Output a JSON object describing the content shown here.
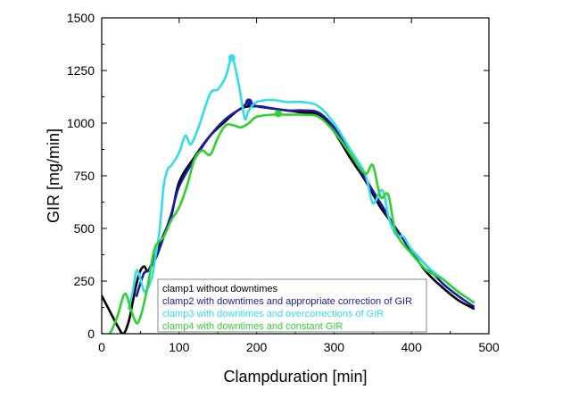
{
  "chart_data": {
    "type": "line",
    "xlabel": "Clampduration [min]",
    "ylabel": "GIR [mg/min]",
    "xlim": [
      0,
      500
    ],
    "ylim": [
      0,
      1500
    ],
    "xticks": [
      0,
      100,
      200,
      300,
      400,
      500
    ],
    "yticks": [
      0,
      250,
      500,
      750,
      1000,
      1250,
      1500
    ],
    "grid": false,
    "legend_position": "bottom-center",
    "series": [
      {
        "name": "clamp1 without downtimes",
        "color": "#000000",
        "x": [
          0,
          10,
          20,
          28,
          35,
          40,
          45,
          50,
          55,
          60,
          70,
          80,
          90,
          100,
          120,
          140,
          160,
          180,
          200,
          220,
          240,
          260,
          280,
          300,
          320,
          340,
          360,
          380,
          400,
          420,
          440,
          460,
          480
        ],
        "y": [
          180,
          110,
          40,
          0,
          60,
          150,
          240,
          300,
          320,
          300,
          380,
          470,
          560,
          720,
          840,
          940,
          1010,
          1070,
          1080,
          1070,
          1060,
          1050,
          1040,
          960,
          840,
          730,
          600,
          500,
          390,
          290,
          220,
          160,
          120
        ]
      },
      {
        "name": "clamp2 with downtimes and appropriate correction of GIR",
        "color": "#1a1aa8",
        "x": [
          45,
          50,
          55,
          60,
          70,
          80,
          90,
          100,
          120,
          140,
          160,
          180,
          190,
          200,
          220,
          240,
          260,
          280,
          300,
          320,
          340,
          360,
          380,
          400,
          420,
          440,
          460,
          480
        ],
        "y": [
          180,
          240,
          290,
          300,
          360,
          460,
          570,
          700,
          830,
          940,
          1020,
          1070,
          1100,
          1080,
          1070,
          1060,
          1060,
          1050,
          980,
          860,
          740,
          620,
          500,
          400,
          320,
          240,
          180,
          130
        ]
      },
      {
        "name": "clamp3 with downtimes and overcorrections of GIR",
        "color": "#33dde6",
        "x": [
          35,
          40,
          45,
          50,
          55,
          60,
          65,
          70,
          75,
          80,
          85,
          90,
          100,
          108,
          115,
          125,
          140,
          150,
          160,
          168,
          175,
          180,
          185,
          190,
          200,
          220,
          240,
          260,
          280,
          300,
          320,
          340,
          350,
          360,
          365,
          370,
          380,
          390,
          400,
          420,
          440,
          460,
          480
        ],
        "y": [
          120,
          200,
          300,
          260,
          200,
          220,
          270,
          380,
          500,
          700,
          780,
          800,
          860,
          940,
          900,
          980,
          1140,
          1160,
          1220,
          1310,
          1220,
          1120,
          1020,
          1060,
          1100,
          1110,
          1100,
          1100,
          1080,
          1000,
          880,
          760,
          620,
          680,
          660,
          560,
          470,
          460,
          400,
          320,
          260,
          200,
          150
        ]
      },
      {
        "name": "clamp4 with downtimes and constant GIR",
        "color": "#2fd22f",
        "x": [
          0,
          10,
          20,
          30,
          38,
          45,
          50,
          55,
          60,
          65,
          70,
          80,
          90,
          100,
          110,
          120,
          130,
          140,
          150,
          160,
          170,
          180,
          190,
          200,
          220,
          240,
          260,
          280,
          300,
          320,
          340,
          350,
          360,
          370,
          380,
          400,
          420,
          440,
          460,
          480
        ],
        "y": [
          0,
          0,
          80,
          190,
          110,
          50,
          80,
          150,
          240,
          350,
          420,
          460,
          540,
          600,
          700,
          830,
          870,
          850,
          930,
          990,
          990,
          980,
          1000,
          1030,
          1040,
          1040,
          1040,
          1030,
          960,
          860,
          760,
          800,
          650,
          660,
          480,
          380,
          300,
          260,
          200,
          150
        ]
      }
    ],
    "markers": [
      {
        "series": "clamp3 with downtimes and overcorrections of GIR",
        "x": 168,
        "y": 1310,
        "color": "#33dde6"
      },
      {
        "series": "clamp2 with downtimes and appropriate correction of GIR",
        "x": 190,
        "y": 1100,
        "color": "#1a1aa8"
      },
      {
        "series": "clamp4 with downtimes and constant GIR",
        "x": 228,
        "y": 1045,
        "color": "#2fd22f"
      }
    ]
  }
}
